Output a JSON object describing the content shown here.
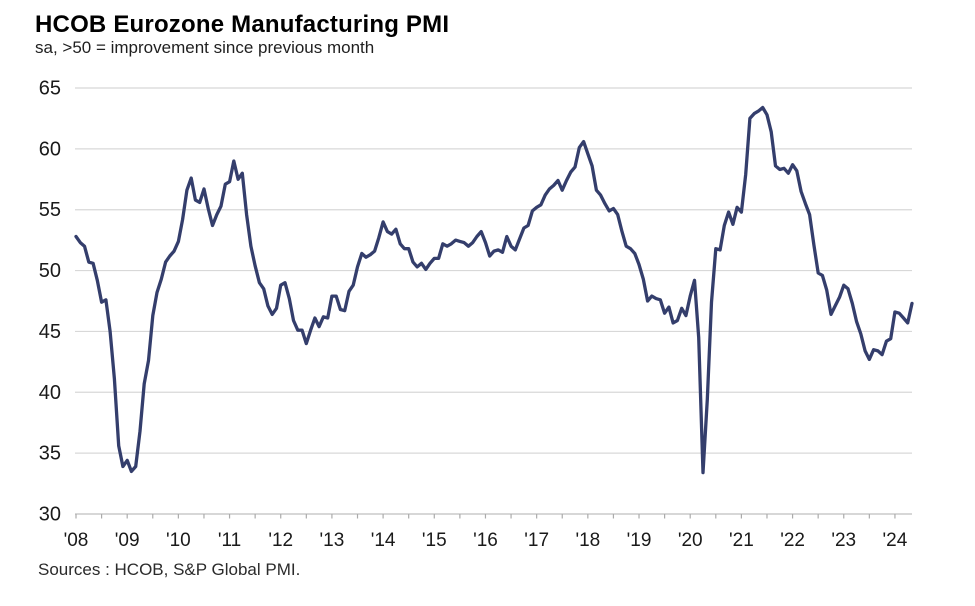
{
  "header": {
    "title": "HCOB Eurozone Manufacturing PMI",
    "subtitle": "sa, >50 = improvement  since previous month"
  },
  "footer": {
    "source": "Sources : HCOB, S&P Global PMI."
  },
  "chart_data": {
    "type": "line",
    "title": "HCOB Eurozone Manufacturing PMI",
    "subtitle": "sa, >50 = improvement since previous month",
    "series_name": "Eurozone Manufacturing PMI (seasonally adjusted)",
    "frequency": "monthly",
    "x_start": "2008-01",
    "x_end": "2024-05",
    "x_tick_labels": [
      "'08",
      "'09",
      "'10",
      "'11",
      "'12",
      "'13",
      "'14",
      "'15",
      "'16",
      "'17",
      "'18",
      "'19",
      "'20",
      "'21",
      "'22",
      "'23",
      "'24"
    ],
    "y_ticks": [
      30,
      35,
      40,
      45,
      50,
      55,
      60,
      65
    ],
    "ylim": [
      30,
      65
    ],
    "grid": "horizontal",
    "legend": "none",
    "values": [
      52.8,
      52.3,
      52.0,
      50.7,
      50.6,
      49.2,
      47.4,
      47.6,
      45.0,
      41.1,
      35.6,
      33.9,
      34.4,
      33.5,
      33.9,
      36.8,
      40.7,
      42.6,
      46.3,
      48.2,
      49.3,
      50.7,
      51.2,
      51.6,
      52.4,
      54.2,
      56.6,
      57.6,
      55.8,
      55.6,
      56.7,
      55.1,
      53.7,
      54.6,
      55.3,
      57.1,
      57.3,
      59.0,
      57.5,
      58.0,
      54.6,
      52.0,
      50.4,
      49.0,
      48.5,
      47.1,
      46.4,
      46.9,
      48.8,
      49.0,
      47.7,
      45.9,
      45.1,
      45.1,
      44.0,
      45.1,
      46.1,
      45.4,
      46.2,
      46.1,
      47.9,
      47.9,
      46.8,
      46.7,
      48.3,
      48.8,
      50.3,
      51.4,
      51.1,
      51.3,
      51.6,
      52.7,
      54.0,
      53.2,
      53.0,
      53.4,
      52.2,
      51.8,
      51.8,
      50.7,
      50.3,
      50.6,
      50.1,
      50.6,
      51.0,
      51.0,
      52.2,
      52.0,
      52.2,
      52.5,
      52.4,
      52.3,
      52.0,
      52.3,
      52.8,
      53.2,
      52.3,
      51.2,
      51.6,
      51.7,
      51.5,
      52.8,
      52.0,
      51.7,
      52.6,
      53.5,
      53.7,
      54.9,
      55.2,
      55.4,
      56.2,
      56.7,
      57.0,
      57.4,
      56.6,
      57.4,
      58.1,
      58.5,
      60.1,
      60.6,
      59.6,
      58.6,
      56.6,
      56.2,
      55.5,
      54.9,
      55.1,
      54.6,
      53.2,
      52.0,
      51.8,
      51.4,
      50.5,
      49.3,
      47.5,
      47.9,
      47.7,
      47.6,
      46.5,
      47.0,
      45.7,
      45.9,
      46.9,
      46.3,
      47.9,
      49.2,
      44.5,
      33.4,
      39.4,
      47.4,
      51.8,
      51.7,
      53.7,
      54.8,
      53.8,
      55.2,
      54.8,
      57.9,
      62.5,
      62.9,
      63.1,
      63.4,
      62.8,
      61.4,
      58.6,
      58.3,
      58.4,
      58.0,
      58.7,
      58.2,
      56.5,
      55.5,
      54.6,
      52.1,
      49.8,
      49.6,
      48.4,
      46.4,
      47.1,
      47.8,
      48.8,
      48.5,
      47.3,
      45.8,
      44.8,
      43.4,
      42.7,
      43.5,
      43.4,
      43.1,
      44.2,
      44.4,
      46.6,
      46.5,
      46.1,
      45.7,
      47.3
    ]
  },
  "style": {
    "line_color": "#343E6C",
    "grid_color": "#D8D8D8",
    "axis_color": "#BFBFBF",
    "tick_color": "#ABABAB",
    "label_color": "#1A1A1A"
  }
}
